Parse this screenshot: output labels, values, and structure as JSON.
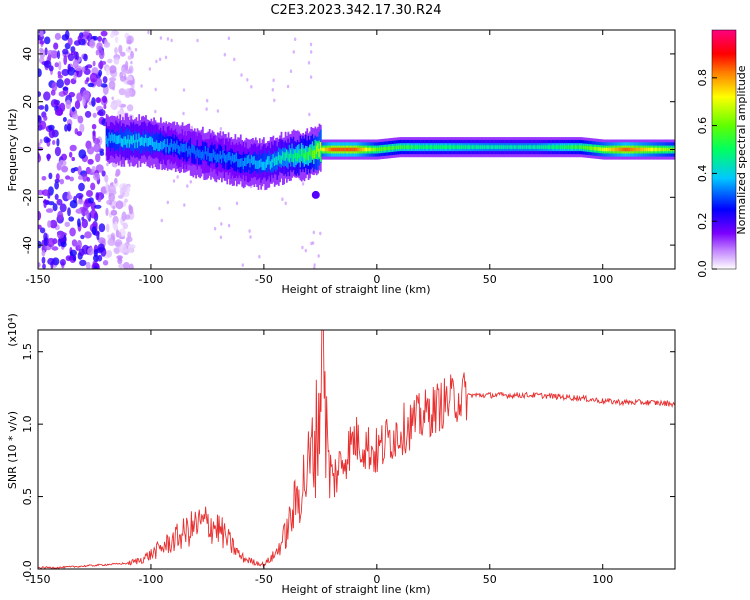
{
  "title": "C2E3.2023.342.17.30.R24",
  "chart_data": [
    {
      "type": "heatmap",
      "xlabel": "Height of straight line (km)",
      "ylabel": "Frequency (Hz)",
      "xlim": [
        -150,
        132
      ],
      "ylim": [
        -50,
        50
      ],
      "xticks": [
        -150,
        -100,
        -50,
        0,
        50,
        100
      ],
      "yticks": [
        -40,
        -20,
        0,
        20,
        40
      ],
      "colorbar": {
        "label": "Normalized spectral amplitude",
        "range": [
          0,
          1
        ],
        "ticks": [
          "0.0",
          "0.2",
          "0.4",
          "0.6",
          "0.8"
        ],
        "colormap": [
          "#ffffff",
          "#7b00ff",
          "#0000ff",
          "#00c8ff",
          "#00ff60",
          "#60ff00",
          "#ffff00",
          "#ff8000",
          "#ff0000",
          "#ff0080"
        ]
      },
      "ridge": {
        "x": [
          -120,
          -110,
          -100,
          -90,
          -80,
          -70,
          -60,
          -50,
          -40,
          -30,
          -25,
          -20,
          -10,
          0,
          10,
          20,
          30,
          50,
          70,
          90,
          100,
          110,
          132
        ],
        "freq": [
          4,
          4,
          3,
          1,
          -1,
          -3,
          -5,
          -6,
          -3,
          -2,
          0,
          0,
          0,
          0,
          1,
          1,
          1,
          1,
          1,
          1,
          0,
          0,
          0
        ],
        "amplitude": [
          0.35,
          0.4,
          0.38,
          0.33,
          0.32,
          0.33,
          0.34,
          0.38,
          0.45,
          0.55,
          0.7,
          0.85,
          0.85,
          0.6,
          0.55,
          0.5,
          0.5,
          0.45,
          0.45,
          0.55,
          0.7,
          0.85,
          0.6
        ]
      },
      "noise_region_x": [
        -150,
        -120
      ]
    },
    {
      "type": "line",
      "xlabel": "Height of straight line (km)",
      "ylabel": "SNR (10 * v/v)",
      "yscale_label": "(x10⁴)",
      "xlim": [
        -150,
        132
      ],
      "ylim": [
        0,
        1.65
      ],
      "xticks": [
        -150,
        -100,
        -50,
        0,
        50,
        100
      ],
      "yticks": [
        "0.0",
        "0.5",
        "1.0",
        "1.5"
      ],
      "color": "#e83030",
      "x": [
        -150,
        -140,
        -130,
        -120,
        -110,
        -105,
        -100,
        -95,
        -90,
        -85,
        -80,
        -75,
        -70,
        -65,
        -60,
        -55,
        -50,
        -45,
        -40,
        -35,
        -30,
        -27,
        -25,
        -24,
        -22,
        -20,
        -15,
        -10,
        -5,
        0,
        5,
        10,
        15,
        20,
        25,
        30,
        35,
        40,
        50,
        60,
        70,
        80,
        90,
        100,
        110,
        120,
        132
      ],
      "y": [
        0.01,
        0.01,
        0.02,
        0.03,
        0.04,
        0.06,
        0.1,
        0.15,
        0.2,
        0.25,
        0.3,
        0.32,
        0.28,
        0.18,
        0.08,
        0.05,
        0.03,
        0.1,
        0.25,
        0.5,
        0.7,
        0.9,
        1.2,
        1.65,
        0.8,
        0.6,
        0.75,
        0.9,
        0.85,
        0.8,
        0.9,
        0.95,
        1.0,
        1.05,
        1.1,
        1.15,
        1.18,
        1.2,
        1.2,
        1.2,
        1.2,
        1.19,
        1.18,
        1.16,
        1.15,
        1.15,
        1.14
      ]
    }
  ]
}
